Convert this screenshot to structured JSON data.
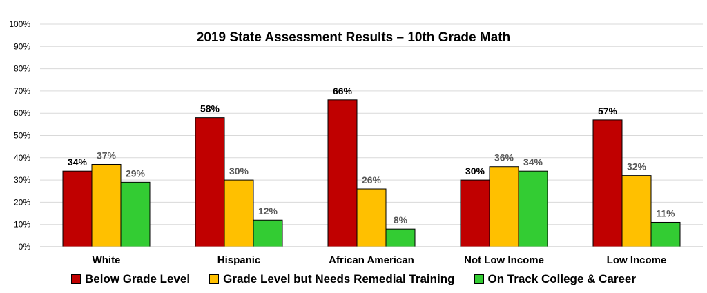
{
  "chart_data": {
    "type": "bar",
    "title": "2019 State Assessment Results – 10th Grade Math",
    "categories": [
      "White",
      "Hispanic",
      "African American",
      "Not Low Income",
      "Low Income"
    ],
    "series": [
      {
        "name": "Below Grade Level",
        "color": "#c00000",
        "values": [
          34,
          58,
          66,
          30,
          57
        ]
      },
      {
        "name": "Grade Level but Needs Remedial Training",
        "color": "#ffc000",
        "values": [
          37,
          30,
          26,
          36,
          32
        ]
      },
      {
        "name": "On Track College & Career",
        "color": "#33cc33",
        "values": [
          29,
          12,
          8,
          34,
          11
        ]
      }
    ],
    "value_label_colors": [
      "#000000",
      "#595959",
      "#595959"
    ],
    "ylim": [
      0,
      100
    ],
    "yticks": [
      "0%",
      "10%",
      "20%",
      "30%",
      "40%",
      "50%",
      "60%",
      "70%",
      "80%",
      "90%",
      "100%"
    ],
    "value_suffix": "%",
    "grid": true,
    "legend_position": "bottom"
  }
}
